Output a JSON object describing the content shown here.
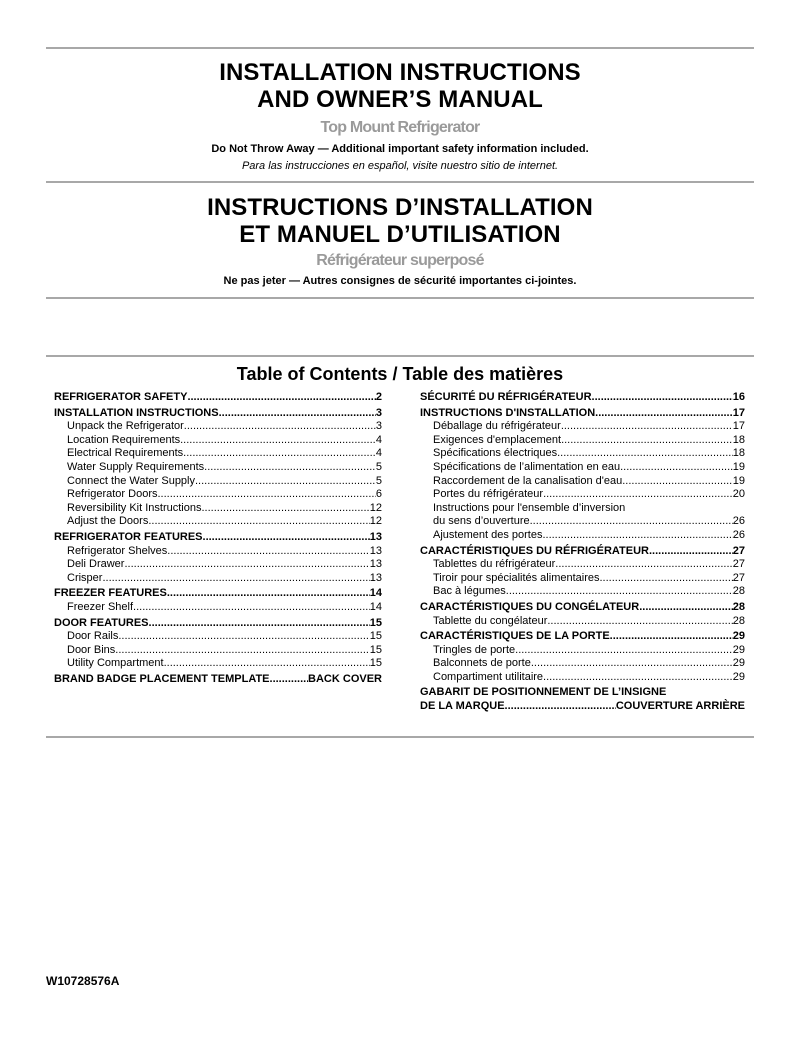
{
  "english": {
    "title_line1": "INSTALLATION INSTRUCTIONS",
    "title_line2": "AND OWNER’S MANUAL",
    "subtitle": "Top Mount Refrigerator",
    "warning": "Do Not Throw Away — Additional important safety information included.",
    "spanish_note": "Para las instrucciones en español, visite nuestro sitio de internet."
  },
  "french": {
    "title_line1": "INSTRUCTIONS D’INSTALLATION",
    "title_line2": "ET MANUEL D’UTILISATION",
    "subtitle": "Réfrigérateur superposé",
    "warning": "Ne pas jeter — Autres consignes de sécurité importantes ci-jointes."
  },
  "toc": {
    "heading": "Table of Contents / Table des matières",
    "left": [
      {
        "label": "REFRIGERATOR SAFETY",
        "page": " 2",
        "level": "main"
      },
      {
        "label": "INSTALLATION INSTRUCTIONS",
        "page": " 3",
        "level": "main"
      },
      {
        "label": "Unpack the Refrigerator ",
        "page": " 3",
        "level": "sub"
      },
      {
        "label": "Location Requirements ",
        "page": " 4",
        "level": "sub"
      },
      {
        "label": "Electrical Requirements",
        "page": "4",
        "level": "sub"
      },
      {
        "label": "Water Supply Requirements",
        "page": " 5",
        "level": "sub"
      },
      {
        "label": "Connect the Water Supply ",
        "page": "5",
        "level": "sub"
      },
      {
        "label": "Refrigerator Doors ",
        "page": " 6",
        "level": "sub"
      },
      {
        "label": "Reversibility Kit Instructions ",
        "page": "12",
        "level": "sub"
      },
      {
        "label": "Adjust the Doors",
        "page": "12",
        "level": "sub"
      },
      {
        "label": "REFRIGERATOR FEATURES",
        "page": " 13",
        "level": "main"
      },
      {
        "label": "Refrigerator Shelves ",
        "page": " 13",
        "level": "sub"
      },
      {
        "label": "Deli Drawer",
        "page": " 13",
        "level": "sub"
      },
      {
        "label": "Crisper",
        "page": "13",
        "level": "sub"
      },
      {
        "label": "FREEZER FEATURES",
        "page": "14",
        "level": "main"
      },
      {
        "label": "Freezer Shelf",
        "page": "14",
        "level": "sub"
      },
      {
        "label": "DOOR FEATURES",
        "page": " 15",
        "level": "main"
      },
      {
        "label": "Door Rails ",
        "page": "15",
        "level": "sub"
      },
      {
        "label": "Door Bins ",
        "page": " 15",
        "level": "sub"
      },
      {
        "label": "Utility Compartment",
        "page": " 15",
        "level": "sub"
      },
      {
        "label": "BRAND BADGE PLACEMENT TEMPLATE ",
        "page": "BACK COVER",
        "level": "main"
      }
    ],
    "right": [
      {
        "label": "SÉCURITÉ DU RÉFRIGÉRATEUR",
        "page": "16",
        "level": "main"
      },
      {
        "label": "INSTRUCTIONS D'INSTALLATION",
        "page": "17",
        "level": "main"
      },
      {
        "label": "Déballage du réfrigérateur ",
        "page": "17",
        "level": "sub"
      },
      {
        "label": "Exigences d'emplacement ",
        "page": "18",
        "level": "sub"
      },
      {
        "label": "Spécifications électriques",
        "page": "18",
        "level": "sub"
      },
      {
        "label": "Spécifications de l’alimentation en eau",
        "page": "19",
        "level": "sub"
      },
      {
        "label": "Raccordement de la canalisation d'eau",
        "page": "19",
        "level": "sub"
      },
      {
        "label": "Portes du réfrigérateur",
        "page": "20",
        "level": "sub"
      },
      {
        "label_line1": "Instructions pour l'ensemble d’inversion",
        "label": "du sens d’ouverture",
        "page": "26",
        "level": "sub"
      },
      {
        "label": "Ajustement des portes",
        "page": "26",
        "level": "sub"
      },
      {
        "label": "CARACTÉRISTIQUES DU RÉFRIGÉRATEUR",
        "page": "27",
        "level": "main"
      },
      {
        "label": "Tablettes du réfrigérateur ",
        "page": "27",
        "level": "sub"
      },
      {
        "label": "Tiroir pour spécialités alimentaires",
        "page": "27",
        "level": "sub"
      },
      {
        "label": "Bac à légumes ",
        "page": "28",
        "level": "sub"
      },
      {
        "label": "CARACTÉRISTIQUES DU CONGÉLATEUR ",
        "page": "28",
        "level": "main"
      },
      {
        "label": "Tablette du congélateur",
        "page": "28",
        "level": "sub"
      },
      {
        "label": "CARACTÉRISTIQUES DE LA PORTE ",
        "page": "29",
        "level": "main"
      },
      {
        "label": "Tringles de porte",
        "page": "29",
        "level": "sub"
      },
      {
        "label": "Balconnets de porte ",
        "page": "29",
        "level": "sub"
      },
      {
        "label": "Compartiment utilitaire ",
        "page": "29",
        "level": "sub"
      },
      {
        "label_line1": "GABARIT DE POSITIONNEMENT DE L’INSIGNE",
        "label": "DE LA MARQUE",
        "page": "COUVERTURE ARRIÈRE",
        "level": "main"
      }
    ]
  },
  "footer": {
    "part_number": "W10728576A"
  }
}
